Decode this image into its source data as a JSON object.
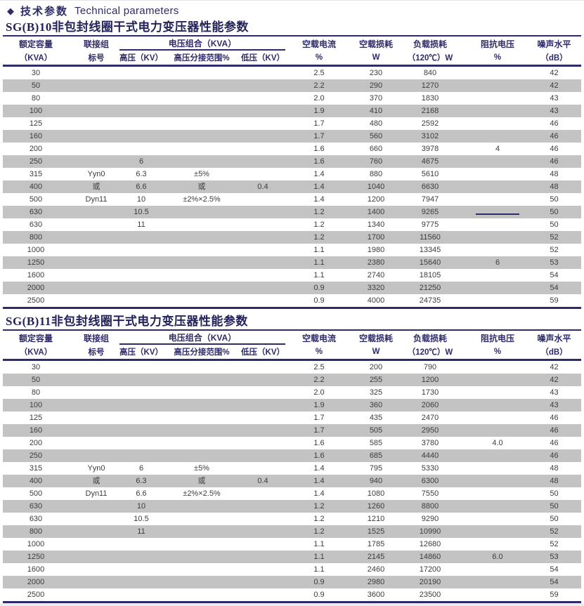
{
  "header": {
    "bullet": "◆",
    "title_zh": "技术参数",
    "title_en": "Technical parameters"
  },
  "colors": {
    "accent_navy": "#2e2b6b",
    "row_shade": "#c3c3c3",
    "data_text": "#3c3c3c"
  },
  "columns": [
    "kva",
    "conn",
    "hv",
    "tap",
    "lv",
    "i0",
    "p0",
    "pk",
    "uk",
    "noise"
  ],
  "tables": [
    {
      "title": "SG(B)10非包封线圈干式电力变压器性能参数",
      "headers": {
        "capacity_l1": "额定容量",
        "capacity_l2": "（KVA）",
        "connection_l1": "联接组",
        "connection_l2": "标号",
        "voltage_group": "电压组合（KVA）",
        "hv": "高压（KV）",
        "tap": "高压分接范围%",
        "lv": "低压（KV）",
        "noload_current_l1": "空载电流",
        "noload_current_l2": "%",
        "noload_loss_l1": "空载损耗",
        "noload_loss_l2": "W",
        "load_loss_l1": "负载损耗",
        "load_loss_l2": "（120℃）W",
        "impedance_l1": "阻抗电压",
        "impedance_l2": "%",
        "noise_l1": "噪声水平",
        "noise_l2": "（dB）"
      },
      "rows": [
        {
          "kva": "30",
          "i0": "2.5",
          "p0": "230",
          "pk": "840",
          "noise": "42",
          "shaded": false
        },
        {
          "kva": "50",
          "i0": "2.2",
          "p0": "290",
          "pk": "1270",
          "noise": "42",
          "shaded": true
        },
        {
          "kva": "80",
          "i0": "2.0",
          "p0": "370",
          "pk": "1830",
          "noise": "43",
          "shaded": false
        },
        {
          "kva": "100",
          "i0": "1.9",
          "p0": "410",
          "pk": "2168",
          "noise": "43",
          "shaded": true
        },
        {
          "kva": "125",
          "i0": "1.7",
          "p0": "480",
          "pk": "2592",
          "noise": "46",
          "shaded": false
        },
        {
          "kva": "160",
          "i0": "1.7",
          "p0": "560",
          "pk": "3102",
          "noise": "46",
          "shaded": true
        },
        {
          "kva": "200",
          "i0": "1.6",
          "p0": "660",
          "pk": "3978",
          "uk": "4",
          "noise": "46",
          "shaded": false
        },
        {
          "kva": "250",
          "hv": "6",
          "i0": "1.6",
          "p0": "760",
          "pk": "4675",
          "noise": "46",
          "shaded": true
        },
        {
          "kva": "315",
          "conn": "Yyn0",
          "hv": "6.3",
          "tap": "±5%",
          "i0": "1.4",
          "p0": "880",
          "pk": "5610",
          "noise": "48",
          "shaded": false
        },
        {
          "kva": "400",
          "conn": "或",
          "hv": "6.6",
          "tap": "或",
          "lv": "0.4",
          "i0": "1.4",
          "p0": "1040",
          "pk": "6630",
          "noise": "48",
          "shaded": true
        },
        {
          "kva": "500",
          "conn": "Dyn11",
          "hv": "10",
          "tap": "±2%×2.5%",
          "i0": "1.4",
          "p0": "1200",
          "pk": "7947",
          "noise": "50",
          "shaded": false
        },
        {
          "kva": "630",
          "hv": "10.5",
          "i0": "1.2",
          "p0": "1400",
          "pk": "9265",
          "uk_rule": true,
          "noise": "50",
          "shaded": true
        },
        {
          "kva": "630",
          "hv": "11",
          "i0": "1.2",
          "p0": "1340",
          "pk": "9775",
          "noise": "50",
          "shaded": false
        },
        {
          "kva": "800",
          "i0": "1.2",
          "p0": "1700",
          "pk": "11560",
          "noise": "52",
          "shaded": true
        },
        {
          "kva": "1000",
          "i0": "1.1",
          "p0": "1980",
          "pk": "13345",
          "noise": "52",
          "shaded": false
        },
        {
          "kva": "1250",
          "i0": "1.1",
          "p0": "2380",
          "pk": "15640",
          "uk": "6",
          "noise": "53",
          "shaded": true
        },
        {
          "kva": "1600",
          "i0": "1.1",
          "p0": "2740",
          "pk": "18105",
          "noise": "54",
          "shaded": false
        },
        {
          "kva": "2000",
          "i0": "0.9",
          "p0": "3320",
          "pk": "21250",
          "noise": "54",
          "shaded": true
        },
        {
          "kva": "2500",
          "i0": "0.9",
          "p0": "4000",
          "pk": "24735",
          "noise": "59",
          "shaded": false
        }
      ]
    },
    {
      "title": "SG(B)11非包封线圈干式电力变压器性能参数",
      "headers": {
        "capacity_l1": "额定容量",
        "capacity_l2": "（KVA）",
        "connection_l1": "联接组",
        "connection_l2": "标号",
        "voltage_group": "电压组合（KVA）",
        "hv": "高压（KV）",
        "tap": "高压分接范围%",
        "lv": "低压（KV）",
        "noload_current_l1": "空载电流",
        "noload_current_l2": "%",
        "noload_loss_l1": "空载损耗",
        "noload_loss_l2": "W",
        "load_loss_l1": "负载损耗",
        "load_loss_l2": "（120℃）W",
        "impedance_l1": "阻抗电压",
        "impedance_l2": "%",
        "noise_l1": "噪声水平",
        "noise_l2": "（dB）"
      },
      "rows": [
        {
          "kva": "30",
          "i0": "2.5",
          "p0": "200",
          "pk": "790",
          "noise": "42",
          "shaded": false
        },
        {
          "kva": "50",
          "i0": "2.2",
          "p0": "255",
          "pk": "1200",
          "noise": "42",
          "shaded": true
        },
        {
          "kva": "80",
          "i0": "2.0",
          "p0": "325",
          "pk": "1730",
          "noise": "43",
          "shaded": false
        },
        {
          "kva": "100",
          "i0": "1.9",
          "p0": "360",
          "pk": "2060",
          "noise": "43",
          "shaded": true
        },
        {
          "kva": "125",
          "i0": "1.7",
          "p0": "435",
          "pk": "2470",
          "noise": "46",
          "shaded": false
        },
        {
          "kva": "160",
          "i0": "1.7",
          "p0": "505",
          "pk": "2950",
          "noise": "46",
          "shaded": true
        },
        {
          "kva": "200",
          "i0": "1.6",
          "p0": "585",
          "pk": "3780",
          "uk": "4.0",
          "noise": "46",
          "shaded": false
        },
        {
          "kva": "250",
          "i0": "1.6",
          "p0": "685",
          "pk": "4440",
          "noise": "46",
          "shaded": true
        },
        {
          "kva": "315",
          "conn": "Yyn0",
          "hv": "6",
          "tap": "±5%",
          "i0": "1.4",
          "p0": "795",
          "pk": "5330",
          "noise": "48",
          "shaded": false
        },
        {
          "kva": "400",
          "conn": "或",
          "hv": "6.3",
          "tap": "或",
          "lv": "0.4",
          "i0": "1.4",
          "p0": "940",
          "pk": "6300",
          "noise": "48",
          "shaded": true
        },
        {
          "kva": "500",
          "conn": "Dyn11",
          "hv": "6.6",
          "tap": "±2%×2.5%",
          "i0": "1.4",
          "p0": "1080",
          "pk": "7550",
          "noise": "50",
          "shaded": false
        },
        {
          "kva": "630",
          "hv": "10",
          "i0": "1.2",
          "p0": "1260",
          "pk": "8800",
          "noise": "50",
          "shaded": true
        },
        {
          "kva": "630",
          "hv": "10.5",
          "i0": "1.2",
          "p0": "1210",
          "pk": "9290",
          "noise": "50",
          "shaded": false
        },
        {
          "kva": "800",
          "hv": "11",
          "i0": "1.2",
          "p0": "1525",
          "pk": "10990",
          "noise": "52",
          "shaded": true
        },
        {
          "kva": "1000",
          "i0": "1.1",
          "p0": "1785",
          "pk": "12680",
          "noise": "52",
          "shaded": false
        },
        {
          "kva": "1250",
          "i0": "1.1",
          "p0": "2145",
          "pk": "14860",
          "uk": "6.0",
          "noise": "53",
          "shaded": true
        },
        {
          "kva": "1600",
          "i0": "1.1",
          "p0": "2460",
          "pk": "17200",
          "noise": "54",
          "shaded": false
        },
        {
          "kva": "2000",
          "i0": "0.9",
          "p0": "2980",
          "pk": "20190",
          "noise": "54",
          "shaded": true
        },
        {
          "kva": "2500",
          "i0": "0.9",
          "p0": "3600",
          "pk": "23500",
          "noise": "59",
          "shaded": false
        }
      ]
    }
  ]
}
